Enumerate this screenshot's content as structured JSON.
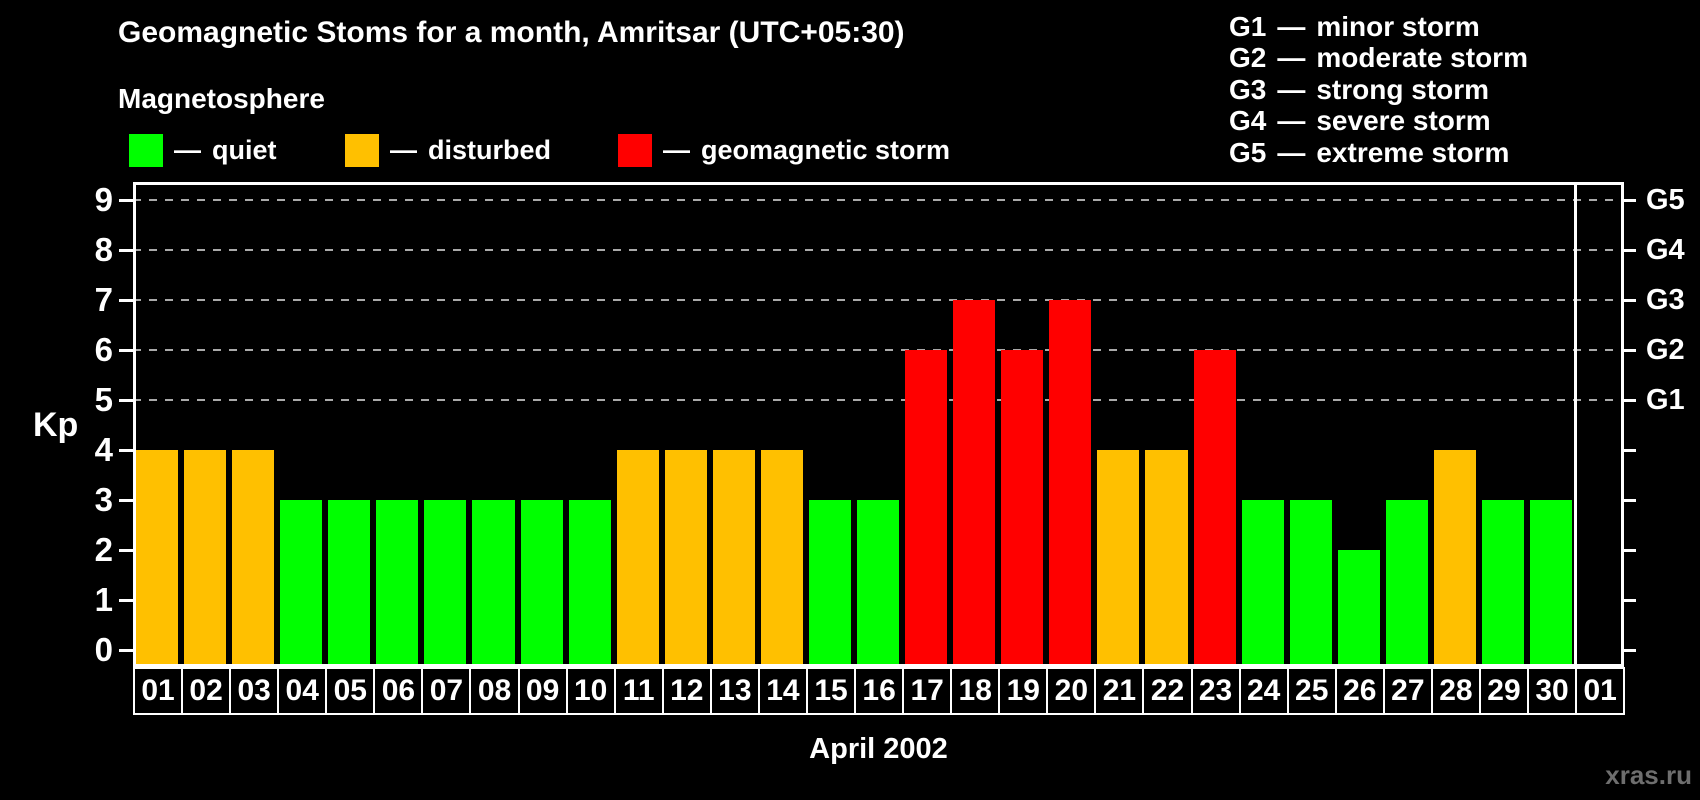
{
  "header": {
    "title": "Geomagnetic Stoms for a month, Amritsar (UTC+05:30)",
    "subtitle": "Magnetosphere"
  },
  "legend": {
    "separator": "—",
    "items": [
      {
        "label": "quiet",
        "status": "quiet",
        "color": "#00ff00"
      },
      {
        "label": "disturbed",
        "status": "disturbed",
        "color": "#ffc000"
      },
      {
        "label": "geomagnetic storm",
        "status": "storm",
        "color": "#ff0000"
      }
    ]
  },
  "g_legend": {
    "separator": "—",
    "items": [
      {
        "code": "G1",
        "desc": "minor storm"
      },
      {
        "code": "G2",
        "desc": "moderate storm"
      },
      {
        "code": "G3",
        "desc": "strong storm"
      },
      {
        "code": "G4",
        "desc": "severe storm"
      },
      {
        "code": "G5",
        "desc": "extreme storm"
      }
    ]
  },
  "colors": {
    "background": "#000000",
    "text": "#ffffff",
    "axis": "#ffffff",
    "gridline": "#aaaaaa",
    "watermark": "#6e6e6e",
    "status": {
      "quiet": "#00ff00",
      "disturbed": "#ffc000",
      "storm": "#ff0000"
    }
  },
  "chart_data": {
    "type": "bar",
    "title": "Geomagnetic Stoms for a month, Amritsar (UTC+05:30)",
    "xlabel": "April 2002",
    "ylabel": "Kp",
    "ylim": [
      0,
      9
    ],
    "y_ticks": [
      0,
      1,
      2,
      3,
      4,
      5,
      6,
      7,
      8,
      9
    ],
    "grid": "horizontal dashed lines at Kp 5,6,7,8,9 only",
    "legend_position": "top",
    "categories": [
      "01",
      "02",
      "03",
      "04",
      "05",
      "06",
      "07",
      "08",
      "09",
      "10",
      "11",
      "12",
      "13",
      "14",
      "15",
      "16",
      "17",
      "18",
      "19",
      "20",
      "21",
      "22",
      "23",
      "24",
      "25",
      "26",
      "27",
      "28",
      "29",
      "30",
      "01"
    ],
    "values": [
      4,
      4,
      4,
      3,
      3,
      3,
      3,
      3,
      3,
      3,
      4,
      4,
      4,
      4,
      3,
      3,
      6,
      7,
      6,
      7,
      4,
      4,
      6,
      3,
      3,
      2,
      3,
      4,
      3,
      3,
      null
    ],
    "statuses": [
      "disturbed",
      "disturbed",
      "disturbed",
      "quiet",
      "quiet",
      "quiet",
      "quiet",
      "quiet",
      "quiet",
      "quiet",
      "disturbed",
      "disturbed",
      "disturbed",
      "disturbed",
      "quiet",
      "quiet",
      "storm",
      "storm",
      "storm",
      "storm",
      "disturbed",
      "disturbed",
      "storm",
      "quiet",
      "quiet",
      "quiet",
      "quiet",
      "disturbed",
      "quiet",
      "quiet",
      null
    ],
    "right_axis": [
      {
        "kp": 5,
        "label": "G1"
      },
      {
        "kp": 6,
        "label": "G2"
      },
      {
        "kp": 7,
        "label": "G3"
      },
      {
        "kp": 8,
        "label": "G4"
      },
      {
        "kp": 9,
        "label": "G5"
      }
    ]
  },
  "footer": {
    "watermark": "xras.ru"
  }
}
